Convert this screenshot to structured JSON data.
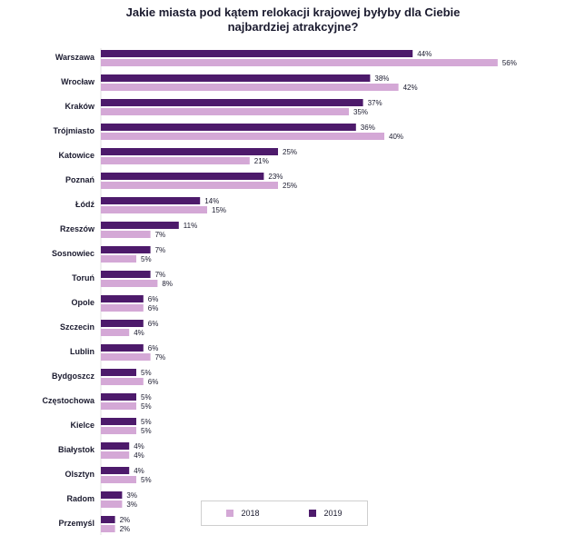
{
  "colors": {
    "2018": "#d4a8d6",
    "2019": "#4d1a6b",
    "text": "#1a1a2e"
  },
  "chart_data": {
    "type": "bar",
    "orientation": "horizontal",
    "title": "Jakie miasta pod kątem relokacji krajowej byłyby dla Ciebie najbardziej atrakcyjne?",
    "title_lines": [
      "Jakie miasta pod kątem relokacji krajowej byłyby dla Ciebie",
      "najbardziej atrakcyjne?"
    ],
    "value_suffix": "%",
    "categories": [
      "Warszawa",
      "Wrocław",
      "Kraków",
      "Trójmiasto",
      "Katowice",
      "Poznań",
      "Łódź",
      "Rzeszów",
      "Sosnowiec",
      "Toruń",
      "Opole",
      "Szczecin",
      "Lublin",
      "Bydgoszcz",
      "Częstochowa",
      "Kielce",
      "Białystok",
      "Olsztyn",
      "Radom",
      "Przemyśl"
    ],
    "series": [
      {
        "name": "2019",
        "values": [
          44,
          38,
          37,
          36,
          25,
          23,
          14,
          11,
          7,
          7,
          6,
          6,
          6,
          5,
          5,
          5,
          4,
          4,
          3,
          2
        ]
      },
      {
        "name": "2018",
        "values": [
          56,
          42,
          35,
          40,
          21,
          25,
          15,
          7,
          5,
          8,
          6,
          4,
          7,
          6,
          5,
          5,
          4,
          5,
          3,
          2
        ]
      }
    ],
    "legend": {
      "position": "bottom",
      "entries": [
        "2018",
        "2019"
      ]
    },
    "grid": false
  }
}
